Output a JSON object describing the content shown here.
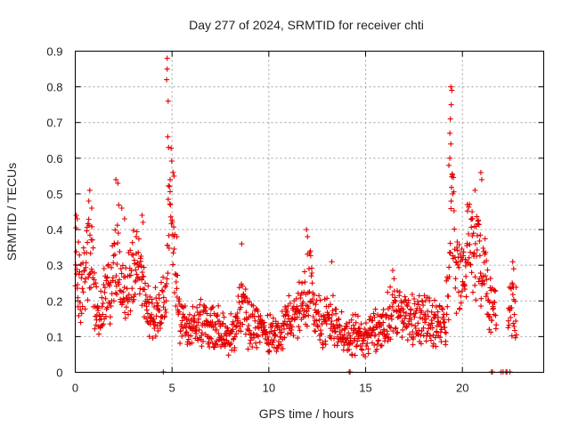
{
  "chart_data": {
    "type": "scatter",
    "title": "Day 277 of 2024, SRMTID for receiver chti",
    "xlabel": "GPS time / hours",
    "ylabel": "SRMTID / TECUs",
    "xlim": [
      0,
      24.2
    ],
    "ylim": [
      0,
      0.9
    ],
    "xticks": [
      0,
      5,
      10,
      15,
      20
    ],
    "yticks": [
      0,
      0.1,
      0.2,
      0.3,
      0.4,
      0.5,
      0.6,
      0.7,
      0.8,
      0.9
    ],
    "grid": true,
    "marker": "plus",
    "color": "#e60000",
    "series": [
      {
        "name": "SRMTID",
        "profile_hours": [
          0,
          0.1,
          0.3,
          0.6,
          0.8,
          1.0,
          1.2,
          1.6,
          2.0,
          2.2,
          2.5,
          2.8,
          3.0,
          3.3,
          3.6,
          4.0,
          4.4,
          4.7,
          4.85,
          4.95,
          5.1,
          5.4,
          5.8,
          6.2,
          6.6,
          7.0,
          7.5,
          8.0,
          8.4,
          8.6,
          8.9,
          9.2,
          9.6,
          10.0,
          10.5,
          11.0,
          11.4,
          11.9,
          12.1,
          12.4,
          12.8,
          13.2,
          13.6,
          14.0,
          14.5,
          15.0,
          15.5,
          16.0,
          16.4,
          16.8,
          17.3,
          17.8,
          18.3,
          18.8,
          19.1,
          19.3,
          19.45,
          19.6,
          19.8,
          20.0,
          20.3,
          20.6,
          20.9,
          21.2,
          21.4,
          21.6,
          22.4,
          22.6,
          22.8
        ],
        "profile_values": [
          0.28,
          0.3,
          0.22,
          0.3,
          0.34,
          0.2,
          0.18,
          0.2,
          0.26,
          0.36,
          0.2,
          0.24,
          0.28,
          0.3,
          0.18,
          0.16,
          0.17,
          0.22,
          0.45,
          0.5,
          0.3,
          0.15,
          0.12,
          0.13,
          0.14,
          0.12,
          0.13,
          0.1,
          0.14,
          0.22,
          0.14,
          0.13,
          0.12,
          0.1,
          0.1,
          0.14,
          0.16,
          0.22,
          0.26,
          0.16,
          0.14,
          0.15,
          0.12,
          0.1,
          0.11,
          0.1,
          0.12,
          0.12,
          0.2,
          0.17,
          0.15,
          0.15,
          0.14,
          0.13,
          0.14,
          0.22,
          0.55,
          0.3,
          0.26,
          0.28,
          0.36,
          0.34,
          0.3,
          0.26,
          0.18,
          0.17,
          0.18,
          0.2,
          0.15
        ],
        "gap_start_hours": 21.75,
        "gap_end_hours": 22.35,
        "outliers": [
          {
            "x": 4.75,
            "y": 0.88
          },
          {
            "x": 4.75,
            "y": 0.85
          },
          {
            "x": 4.72,
            "y": 0.82
          },
          {
            "x": 4.8,
            "y": 0.76
          },
          {
            "x": 4.78,
            "y": 0.66
          },
          {
            "x": 4.82,
            "y": 0.63
          },
          {
            "x": 19.4,
            "y": 0.8
          },
          {
            "x": 19.45,
            "y": 0.79
          },
          {
            "x": 19.42,
            "y": 0.75
          },
          {
            "x": 19.38,
            "y": 0.71
          },
          {
            "x": 19.35,
            "y": 0.67
          },
          {
            "x": 19.4,
            "y": 0.64
          },
          {
            "x": 19.35,
            "y": 0.6
          },
          {
            "x": 19.3,
            "y": 0.58
          },
          {
            "x": 19.5,
            "y": 0.5
          },
          {
            "x": 2.1,
            "y": 0.54
          },
          {
            "x": 2.2,
            "y": 0.53
          },
          {
            "x": 0.75,
            "y": 0.51
          },
          {
            "x": 0.7,
            "y": 0.48
          },
          {
            "x": 0.85,
            "y": 0.46
          },
          {
            "x": 2.4,
            "y": 0.46
          },
          {
            "x": 2.55,
            "y": 0.43
          },
          {
            "x": 3.45,
            "y": 0.44
          },
          {
            "x": 3.5,
            "y": 0.42
          },
          {
            "x": 0.05,
            "y": 0.44
          },
          {
            "x": 0.1,
            "y": 0.43
          },
          {
            "x": 11.95,
            "y": 0.4
          },
          {
            "x": 12.0,
            "y": 0.38
          },
          {
            "x": 8.6,
            "y": 0.36
          },
          {
            "x": 20.65,
            "y": 0.51
          },
          {
            "x": 20.95,
            "y": 0.56
          },
          {
            "x": 21.0,
            "y": 0.54
          },
          {
            "x": 20.25,
            "y": 0.47
          },
          {
            "x": 20.5,
            "y": 0.45
          },
          {
            "x": 22.6,
            "y": 0.31
          },
          {
            "x": 22.65,
            "y": 0.29
          },
          {
            "x": 5.05,
            "y": 0.56
          },
          {
            "x": 5.1,
            "y": 0.55
          },
          {
            "x": 4.9,
            "y": 0.54
          },
          {
            "x": 5.25,
            "y": 0.38
          },
          {
            "x": 3.15,
            "y": 0.38
          },
          {
            "x": 13.25,
            "y": 0.31
          }
        ],
        "zero_points_hours": [
          4.55,
          14.15,
          14.2,
          21.5,
          21.55,
          22.0,
          22.1,
          22.25,
          22.3,
          22.45
        ]
      }
    ]
  }
}
